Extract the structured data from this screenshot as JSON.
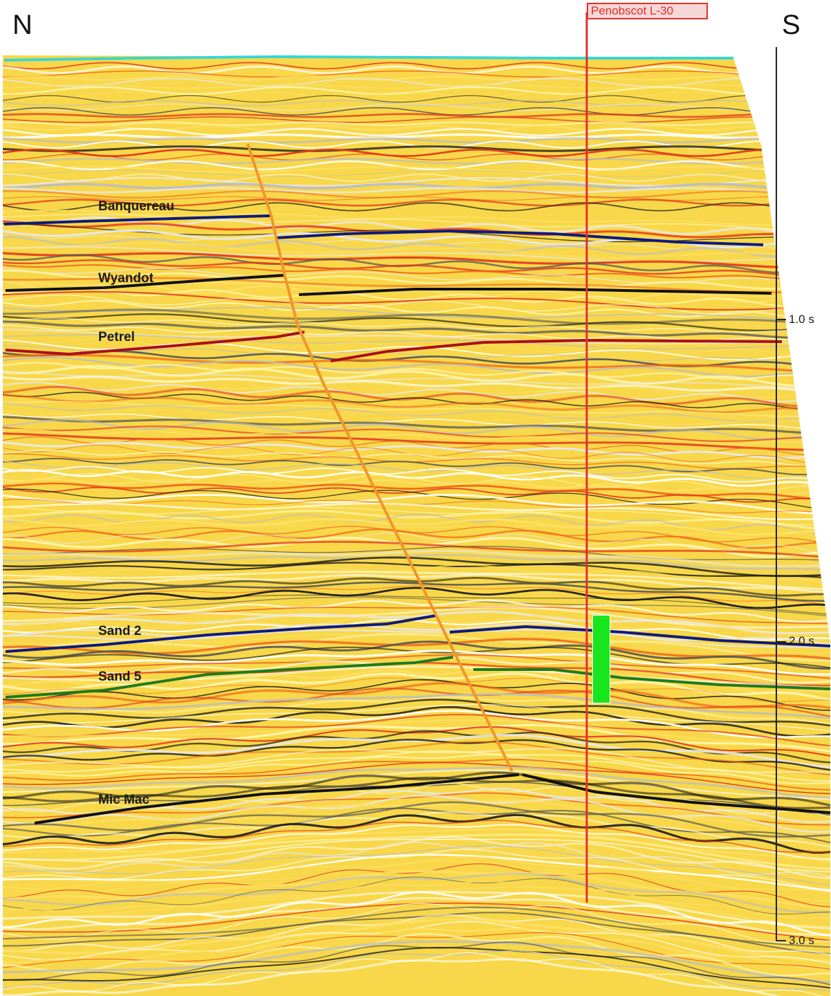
{
  "orientation": {
    "left": "N",
    "right": "S"
  },
  "well": {
    "name": "Penobscot L-30",
    "color": "#e0302c"
  },
  "horizons": [
    {
      "id": "banquereau",
      "label": "Banquereau",
      "color": "#0e1a7a"
    },
    {
      "id": "wyandot",
      "label": "Wyandot",
      "color": "#111111"
    },
    {
      "id": "petrel",
      "label": "Petrel",
      "color": "#a8101c"
    },
    {
      "id": "sand2",
      "label": "Sand 2",
      "color": "#0e1a7a"
    },
    {
      "id": "sand5",
      "label": "Sand 5",
      "color": "#1f7a1f"
    },
    {
      "id": "micmac",
      "label": "Mic Mac",
      "color": "#111111"
    }
  ],
  "time_axis": {
    "ticks": [
      {
        "label": "1.0 s",
        "value": 1.0
      },
      {
        "label": "2.0 s",
        "value": 2.0
      },
      {
        "label": "3.0 s",
        "value": 3.0
      }
    ]
  },
  "colors": {
    "background": "#f8d84a",
    "fault": "#f0962a",
    "seafloor": "#39d6d6",
    "pay_zone": "#17e61c"
  }
}
